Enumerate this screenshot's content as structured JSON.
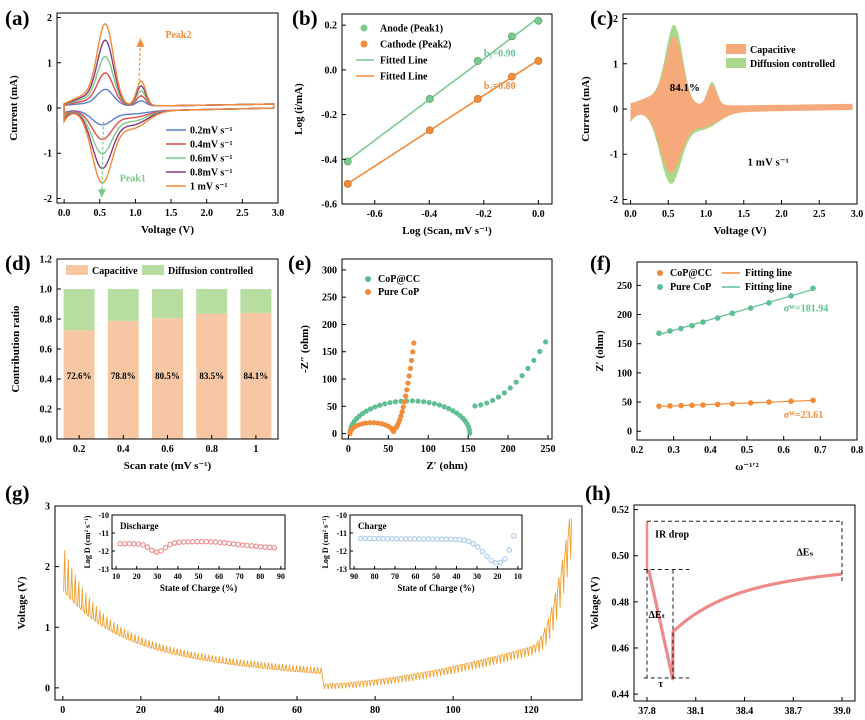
{
  "colors": {
    "orange": "#f28c3a",
    "green": "#7bc98f",
    "red": "#e24b4b",
    "purple": "#8a3a7a",
    "blue": "#5b7fd0",
    "cap": "#f6a97a",
    "capbar": "#f7c7a3",
    "diff": "#a9d98a",
    "diffbar": "#b7dea0",
    "pink": "#ef8a8a",
    "lightblue": "#a9c9ea",
    "gold": "#f0a030",
    "teal": "#5fbf93"
  },
  "panels": {
    "a": {
      "label": "(a)",
      "xlabel": "Voltage (V)",
      "ylabel": "Current (mA)",
      "xlim": [
        -0.1,
        3.0
      ],
      "ylim": [
        -2.1,
        2.1
      ],
      "xticks": [
        "0.0",
        "0.5",
        "1.0",
        "1.5",
        "2.0",
        "2.5",
        "3.0"
      ],
      "xtickvals": [
        0,
        0.5,
        1,
        1.5,
        2,
        2.5,
        3
      ],
      "yticks": [
        "-2",
        "-1",
        "0",
        "1",
        "2"
      ],
      "ytickvals": [
        -2,
        -1,
        0,
        1,
        2
      ],
      "legend": [
        "0.2mV s⁻¹",
        "0.4mV s⁻¹",
        "0.6mV s⁻¹",
        "0.8mV s⁻¹",
        "1 mV s⁻¹"
      ],
      "scales": [
        0.2,
        0.4,
        0.6,
        0.8,
        1.0
      ],
      "peak2": "Peak2",
      "peak1": "Peak1"
    },
    "b": {
      "label": "(b)",
      "xlabel": "Log (Scan, mV s⁻¹)",
      "ylabel": "Log (i/mA)",
      "xlim": [
        -0.72,
        0.05
      ],
      "ylim": [
        -0.6,
        0.25
      ],
      "xticks": [
        "-0.6",
        "-0.4",
        "-0.2",
        "0.0"
      ],
      "xtickvals": [
        -0.6,
        -0.4,
        -0.2,
        0
      ],
      "yticks": [
        "-0.6",
        "-0.4",
        "-0.2",
        "0.0",
        "0.2"
      ],
      "ytickvals": [
        -0.6,
        -0.4,
        -0.2,
        0,
        0.2
      ],
      "x": [
        -0.699,
        -0.398,
        -0.222,
        -0.097,
        0.0
      ],
      "anode": [
        -0.41,
        -0.13,
        0.04,
        0.15,
        0.22
      ],
      "cathode": [
        -0.51,
        -0.27,
        -0.13,
        -0.03,
        0.04
      ],
      "legend": [
        "Anode (Peak1)",
        "Cathode (Peak2)",
        "Fitted Line",
        "Fitted Line"
      ],
      "b1": "b₁=0.90",
      "b2": "b₂=0.80"
    },
    "c": {
      "label": "(c)",
      "xlabel": "Voltage (V)",
      "ylabel": "Current (mA)",
      "xlim": [
        -0.1,
        3.0
      ],
      "ylim": [
        -2.1,
        2.1
      ],
      "xticks": [
        "0.0",
        "0.5",
        "1.0",
        "1.5",
        "2.0",
        "2.5",
        "3.0"
      ],
      "xtickvals": [
        0,
        0.5,
        1,
        1.5,
        2,
        2.5,
        3
      ],
      "yticks": [
        "-2",
        "-1",
        "0",
        "1",
        "2"
      ],
      "ytickvals": [
        -2,
        -1,
        0,
        1,
        2
      ],
      "legend": [
        "Capacitive",
        "Diffusion controlled"
      ],
      "pct": "84.1%",
      "rate": "1 mV s⁻¹"
    },
    "d": {
      "label": "(d)",
      "xlabel": "Scan rate (mV s⁻¹)",
      "ylabel": "Contribution ratio",
      "ylim": [
        0,
        1.2
      ],
      "categories": [
        "0.2",
        "0.4",
        "0.6",
        "0.8",
        "1"
      ],
      "yticks": [
        "0.0",
        "0.2",
        "0.4",
        "0.6",
        "0.8",
        "1.0",
        "1.2"
      ],
      "ytickvals": [
        0,
        0.2,
        0.4,
        0.6,
        0.8,
        1.0,
        1.2
      ],
      "capacitive": [
        0.726,
        0.788,
        0.805,
        0.835,
        0.841
      ],
      "labels": [
        "72.6%",
        "78.8%",
        "80.5%",
        "83.5%",
        "84.1%"
      ],
      "legend": [
        "Capacitive",
        "Diffusion controlled"
      ]
    },
    "e": {
      "label": "(e)",
      "xlabel": "Z′ (ohm)",
      "ylabel": "-Z″ (ohm)",
      "xlim": [
        -8,
        255
      ],
      "ylim": [
        -10,
        320
      ],
      "xticks": [
        "0",
        "50",
        "100",
        "150",
        "200",
        "250"
      ],
      "xtickvals": [
        0,
        50,
        100,
        150,
        200,
        250
      ],
      "yticks": [
        "0",
        "50",
        "100",
        "150",
        "200",
        "250",
        "300"
      ],
      "ytickvals": [
        0,
        50,
        100,
        150,
        200,
        250,
        300
      ],
      "legend": [
        "CoP@CC",
        "Pure CoP"
      ]
    },
    "f": {
      "label": "(f)",
      "xlabel": "ω⁻¹′²",
      "ylabel": "Z′ (ohm)",
      "xlim": [
        0.2,
        0.8
      ],
      "ylim": [
        -15,
        290
      ],
      "xticks": [
        "0.2",
        "0.3",
        "0.4",
        "0.5",
        "0.6",
        "0.7",
        "0.8"
      ],
      "xtickvals": [
        0.2,
        0.3,
        0.4,
        0.5,
        0.6,
        0.7,
        0.8
      ],
      "yticks": [
        "0",
        "50",
        "100",
        "150",
        "200",
        "250"
      ],
      "ytickvals": [
        0,
        50,
        100,
        150,
        200,
        250
      ],
      "x": [
        0.26,
        0.29,
        0.32,
        0.35,
        0.38,
        0.42,
        0.46,
        0.51,
        0.56,
        0.62,
        0.68
      ],
      "cop_cc": [
        43,
        43.5,
        44,
        44.5,
        45,
        46,
        47,
        48.5,
        50,
        51.5,
        53
      ],
      "pure_cop": [
        168,
        172,
        176,
        181,
        187,
        194,
        202,
        211,
        220,
        232,
        245
      ],
      "legend": [
        "CoP@CC",
        "Pure CoP",
        "Fitting line",
        "Fitting line"
      ],
      "sigma1": "σᵂ=181.94",
      "sigma2": "σᵂ=23.61"
    },
    "g": {
      "label": "(g)",
      "xlabel": "Time (h)",
      "ylabel": "Voltage (V)",
      "xlim": [
        -2,
        133
      ],
      "ylim": [
        -0.2,
        3.0
      ],
      "xticks": [
        "0",
        "20",
        "40",
        "60",
        "80",
        "100",
        "120"
      ],
      "xtickvals": [
        0,
        20,
        40,
        60,
        80,
        100,
        120
      ],
      "yticks": [
        "0",
        "1",
        "2",
        "3"
      ],
      "ytickvals": [
        0,
        1,
        2,
        3
      ],
      "inset1": {
        "title": "Discharge",
        "xlabel": "State of Charge (%)",
        "ylabel": "Log D (cm² s⁻¹)",
        "xticks": [
          "10",
          "20",
          "30",
          "40",
          "50",
          "60",
          "70",
          "80",
          "90"
        ],
        "xtickvals": [
          10,
          20,
          30,
          40,
          50,
          60,
          70,
          80,
          90
        ],
        "yticks": [
          "-10",
          "-11",
          "-12",
          "-13"
        ],
        "ytickvals": [
          -10,
          -11,
          -12,
          -13
        ]
      },
      "inset2": {
        "title": "Charge",
        "xlabel": "State of Charge (%)",
        "ylabel": "Log D (cm² s⁻¹)",
        "xticks": [
          "90",
          "80",
          "70",
          "60",
          "50",
          "40",
          "30",
          "20",
          "10"
        ],
        "xtickvals": [
          90,
          80,
          70,
          60,
          50,
          40,
          30,
          20,
          10
        ],
        "yticks": [
          "-10",
          "-11",
          "-12",
          "-13"
        ],
        "ytickvals": [
          -10,
          -11,
          -12,
          -13
        ]
      }
    },
    "h": {
      "label": "(h)",
      "xlabel": "Time (h)",
      "ylabel": "Voltage (V)",
      "xlim": [
        37.72,
        39.08
      ],
      "ylim": [
        0.437,
        0.522
      ],
      "xticks": [
        "37.8",
        "38.1",
        "38.4",
        "38.7",
        "39.0"
      ],
      "xtickvals": [
        37.8,
        38.1,
        38.4,
        38.7,
        39.0
      ],
      "yticks": [
        "0.44",
        "0.46",
        "0.48",
        "0.50",
        "0.52"
      ],
      "ytickvals": [
        0.44,
        0.46,
        0.48,
        0.5,
        0.52
      ],
      "ir": "IR drop",
      "es": "ΔEₛ",
      "et": "ΔEₜ",
      "tau": "τ"
    }
  }
}
